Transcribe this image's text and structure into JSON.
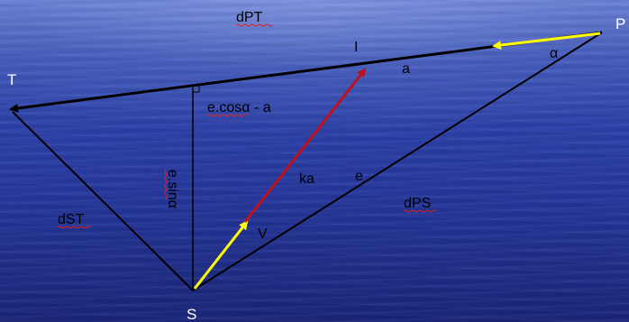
{
  "diagram": {
    "points": {
      "T": "T",
      "P": "P",
      "S": "S",
      "I": "I",
      "V": "V"
    },
    "labels": {
      "dPT": "dPT",
      "dST": "dST",
      "dPS": "dPS",
      "a": "a",
      "alpha": "α",
      "e_cos": "e.cosα - a",
      "e_sin": "e.sinα",
      "ka": "ka",
      "e": "e"
    },
    "colors": {
      "black_line": "#000000",
      "yellow_arrow": "#ffff00",
      "red_arrow": "#c0101a",
      "label_white": "#ffffff"
    }
  }
}
